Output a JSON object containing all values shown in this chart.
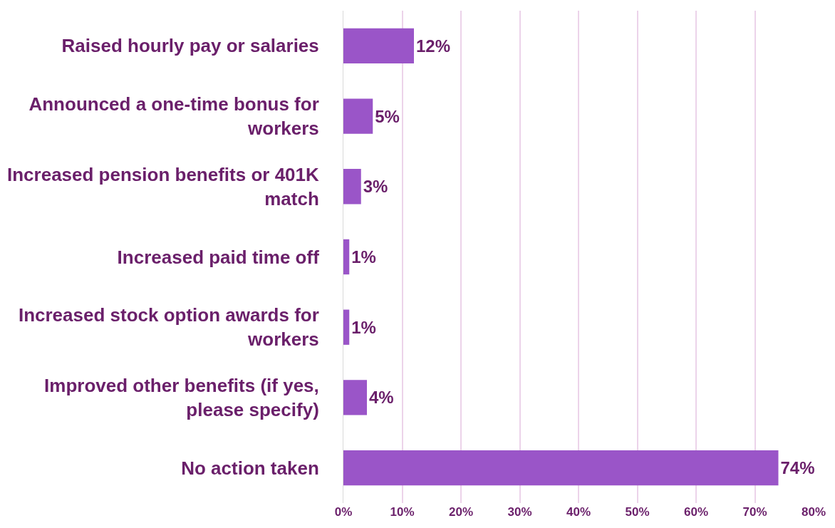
{
  "chart_data": {
    "type": "bar",
    "orientation": "horizontal",
    "categories": [
      "Raised hourly pay or salaries",
      "Announced a one-time bonus for workers",
      "Increased pension benefits or 401K match",
      "Increased paid time off",
      "Increased stock option awards for workers",
      "Improved other benefits (if yes, please specify)",
      "No action taken"
    ],
    "values": [
      12,
      5,
      3,
      1,
      1,
      4,
      74
    ],
    "color": "#9a55c8",
    "xlim": [
      0,
      80
    ],
    "xticks": [
      {
        "value": 0,
        "label": "0%"
      },
      {
        "value": 10,
        "label": "10%"
      },
      {
        "value": 20,
        "label": "20%"
      },
      {
        "value": 30,
        "label": "30%"
      },
      {
        "value": 40,
        "label": "40%"
      },
      {
        "value": 50,
        "label": "50%"
      },
      {
        "value": 60,
        "label": "60%"
      },
      {
        "value": 70,
        "label": "70%"
      },
      {
        "value": 80,
        "label": "80%"
      }
    ],
    "value_labels": [
      "12%",
      "5%",
      "3%",
      "1%",
      "1%",
      "4%",
      "74%"
    ],
    "grid": "x",
    "legend": false
  }
}
